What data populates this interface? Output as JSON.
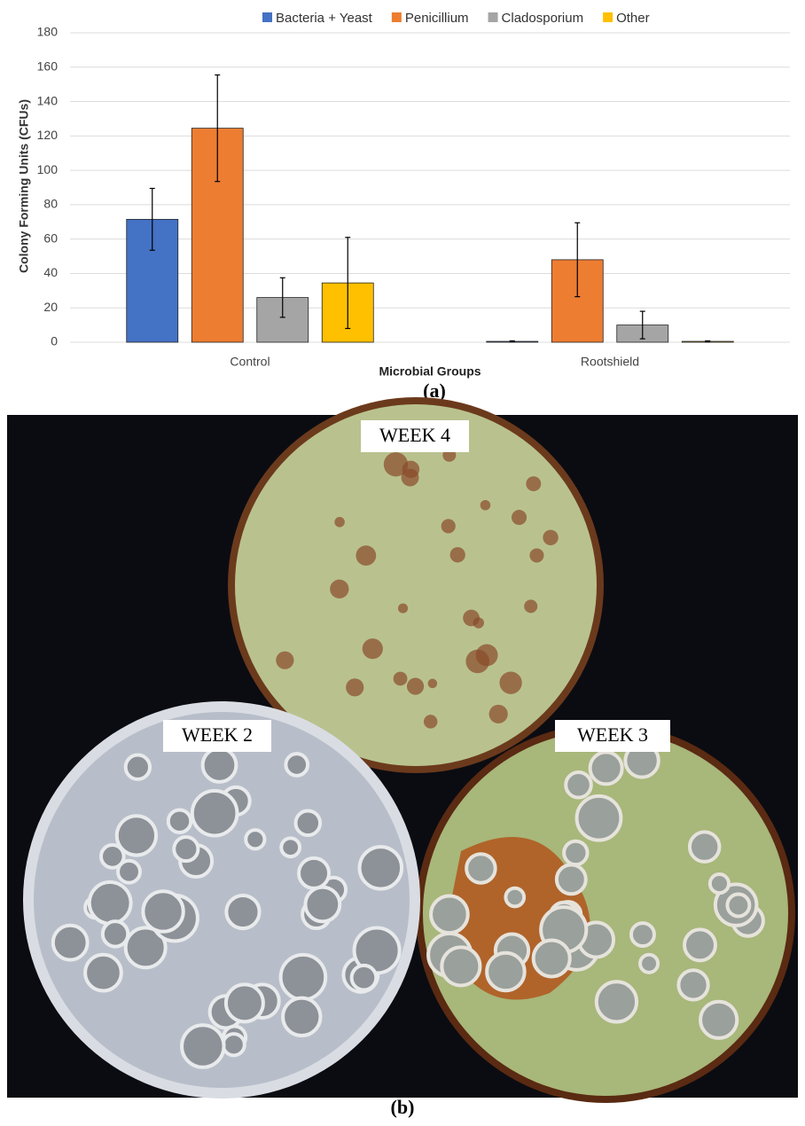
{
  "chart_data": {
    "type": "bar",
    "y_label": "Colony Forming Units (CFUs)",
    "x_label": "Microbial Groups",
    "categories": [
      "Control",
      "Rootshield"
    ],
    "series": [
      {
        "name": "Bacteria + Yeast",
        "color": "#4472c4",
        "values": [
          71.5,
          0.5
        ],
        "errors": [
          18,
          0.3
        ]
      },
      {
        "name": "Penicillium",
        "color": "#ed7d31",
        "values": [
          124.5,
          48
        ],
        "errors": [
          31,
          21.5
        ]
      },
      {
        "name": "Cladosporium",
        "color": "#a5a5a5",
        "values": [
          26,
          10
        ],
        "errors": [
          11.5,
          8
        ]
      },
      {
        "name": "Other",
        "color": "#ffc000",
        "values": [
          34.5,
          0.5
        ],
        "errors": [
          26.5,
          0.3
        ]
      }
    ],
    "ylim": [
      0,
      180
    ],
    "yticks": [
      0,
      20,
      40,
      60,
      80,
      100,
      120,
      140,
      160,
      180
    ],
    "grid": true,
    "legend": "top"
  },
  "panel_labels": [
    "(a)",
    "(b)"
  ],
  "photo": {
    "labels": [
      "WEEK 4",
      "WEEK 2",
      "WEEK 3"
    ]
  }
}
